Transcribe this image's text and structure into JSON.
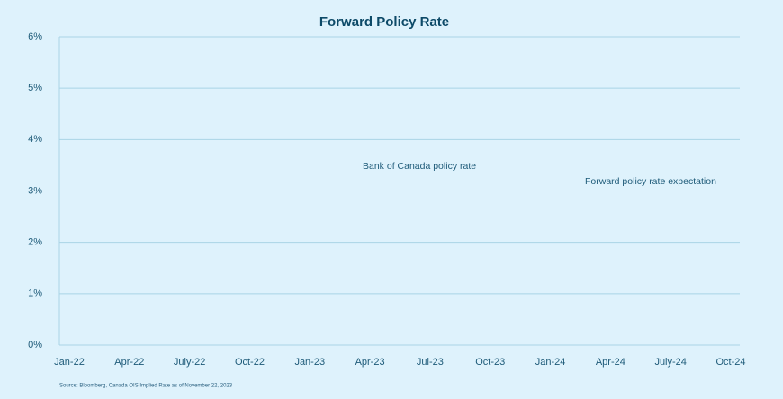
{
  "chart_data": {
    "type": "line",
    "title": "Forward Policy Rate",
    "categories": [
      "Jan-22",
      "Apr-22",
      "July-22",
      "Oct-22",
      "Jan-23",
      "Apr-23",
      "Jul-23",
      "Oct-23",
      "Jan-24",
      "Apr-24",
      "July-24",
      "Oct-24"
    ],
    "series": [],
    "ylim": [
      0,
      6
    ],
    "yticks": [
      {
        "value": 0,
        "label": "0%"
      },
      {
        "value": 1,
        "label": "1%"
      },
      {
        "value": 2,
        "label": "2%"
      },
      {
        "value": 3,
        "label": "3%"
      },
      {
        "value": 4,
        "label": "4%"
      },
      {
        "value": 5,
        "label": "5%"
      },
      {
        "value": 6,
        "label": "6%"
      }
    ],
    "grid": true,
    "annotations": [
      "Bank of Canada policy rate",
      "Forward policy rate expectation"
    ],
    "source": "Source: Bloomberg, Canada OIS Implied Rate as of November 22, 2023"
  }
}
